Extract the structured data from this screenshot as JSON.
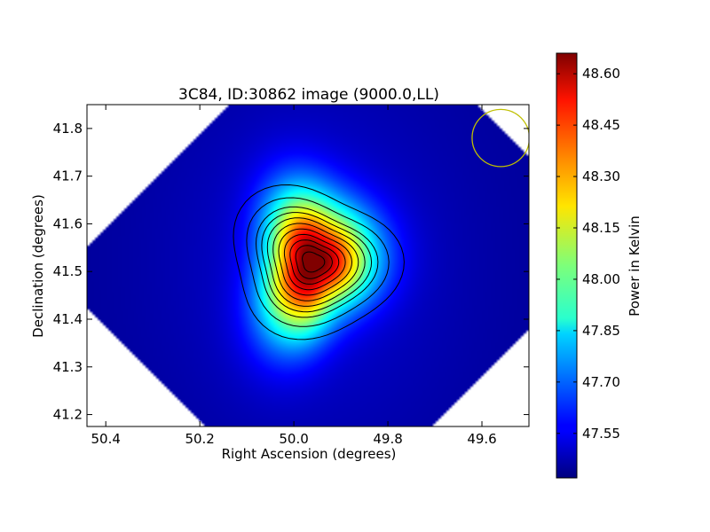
{
  "chart_data": {
    "type": "heatmap",
    "title": "3C84, ID:30862 image (9000.0,LL)",
    "xlabel": "Right Ascension (degrees)",
    "ylabel": "Declination (degrees)",
    "xlim": [
      50.44,
      49.5
    ],
    "ylim": [
      41.175,
      41.85
    ],
    "x_ticks": [
      "50.4",
      "50.2",
      "50.0",
      "49.8",
      "49.6"
    ],
    "x_tick_values": [
      50.4,
      50.2,
      50.0,
      49.8,
      49.6
    ],
    "y_ticks": [
      "41.2",
      "41.3",
      "41.4",
      "41.5",
      "41.6",
      "41.7",
      "41.8"
    ],
    "y_tick_values": [
      41.2,
      41.3,
      41.4,
      41.5,
      41.6,
      41.7,
      41.8
    ],
    "colorbar": {
      "label": "Power in Kelvin",
      "colormap": "jet",
      "range": [
        47.42,
        48.66
      ],
      "ticks": [
        "47.55",
        "47.70",
        "47.85",
        "48.00",
        "48.15",
        "48.30",
        "48.45",
        "48.60"
      ],
      "tick_values": [
        47.55,
        47.7,
        47.85,
        48.0,
        48.15,
        48.3,
        48.45,
        48.6
      ]
    },
    "peak": {
      "ra": 49.96,
      "dec": 41.52,
      "value": 48.65
    },
    "background_level": 47.45,
    "beam": {
      "ra": 49.56,
      "dec": 41.78,
      "radius_deg": 0.06,
      "color": "#bfbf00"
    },
    "grid": false
  }
}
